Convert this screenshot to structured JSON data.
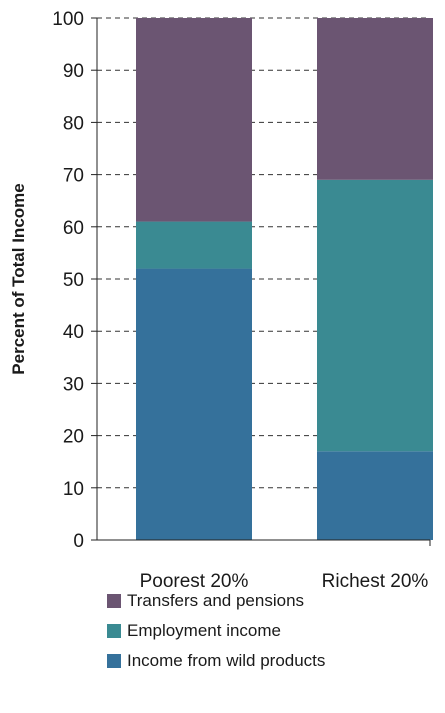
{
  "chart_data": {
    "type": "bar",
    "stacked": true,
    "categories": [
      "Poorest 20%",
      "Richest 20%"
    ],
    "series": [
      {
        "name": "Income from wild products",
        "values": [
          52,
          17
        ],
        "color": "#35719b"
      },
      {
        "name": "Employment income",
        "values": [
          9,
          52
        ],
        "color": "#3a8a92"
      },
      {
        "name": "Transfers and pensions",
        "values": [
          39,
          31
        ],
        "color": "#6b5572"
      }
    ],
    "title": "",
    "xlabel": "",
    "ylabel": "Percent of Total Income",
    "ylim": [
      0,
      100
    ],
    "yticks": [
      0,
      10,
      20,
      30,
      40,
      50,
      60,
      70,
      80,
      90,
      100
    ],
    "grid": "dashed horizontal",
    "legend_position": "bottom"
  },
  "legend": {
    "items": [
      {
        "label": "Transfers and pensions",
        "color": "#6b5572"
      },
      {
        "label": "Employment income",
        "color": "#3a8a92"
      },
      {
        "label": "Income from wild products",
        "color": "#35719b"
      }
    ]
  }
}
